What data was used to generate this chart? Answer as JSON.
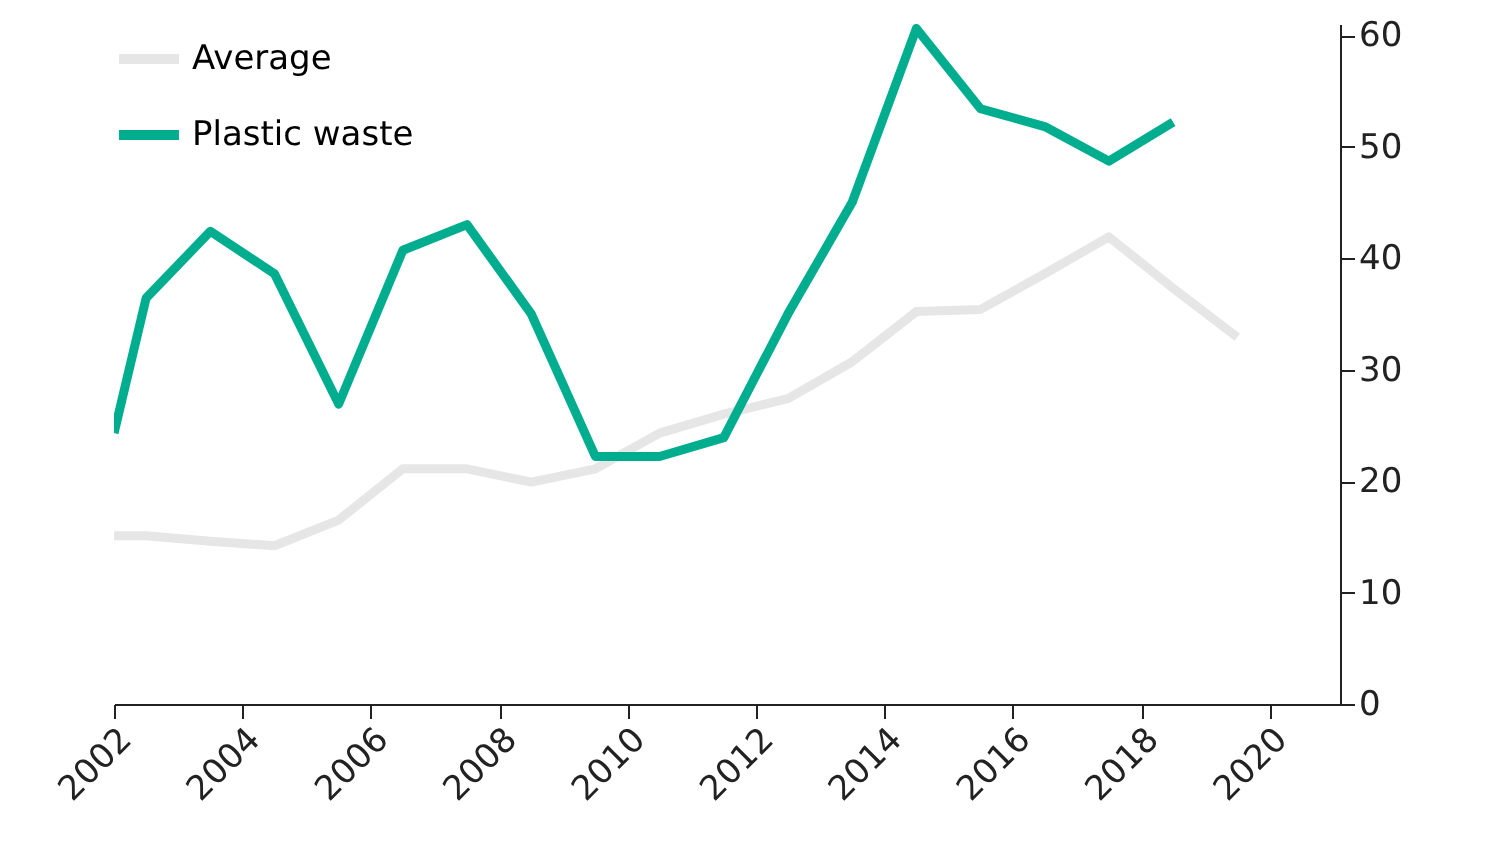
{
  "chart_data": {
    "type": "line",
    "series": [
      {
        "name": "Average",
        "color": "#e6e6e6",
        "x": [
          2002,
          2002.5,
          2003.5,
          2004.5,
          2005.5,
          2006.5,
          2007.5,
          2008.5,
          2009.5,
          2010.5,
          2011.5,
          2012.5,
          2013.5,
          2014.5,
          2015.5,
          2016.5,
          2017.5,
          2018.5,
          2019.5
        ],
        "values": [
          15.1,
          15.1,
          14.6,
          14.2,
          16.5,
          21.1,
          21.1,
          19.9,
          21.1,
          24.3,
          26,
          27.4,
          30.7,
          35.2,
          35.4,
          38.6,
          41.9,
          37.3,
          32.9
        ]
      },
      {
        "name": "Plastic waste",
        "color": "#00ad8e",
        "x": [
          2002,
          2002.5,
          2003.5,
          2004.5,
          2005.5,
          2006.5,
          2007.5,
          2008.5,
          2009.5,
          2010.5,
          2011.5,
          2012.5,
          2013.5,
          2014.5,
          2015.5,
          2016.5,
          2017.5,
          2018.5
        ],
        "values": [
          24.3,
          36.4,
          42.4,
          38.6,
          26.9,
          40.7,
          43,
          35,
          22.2,
          22.2,
          23.9,
          35,
          45,
          60.6,
          53.4,
          51.8,
          48.7,
          52.2
        ]
      }
    ],
    "xlim": [
      2002,
      2021.1
    ],
    "xticks": [
      2002,
      2004,
      2006,
      2008,
      2010,
      2012,
      2014,
      2016,
      2018,
      2020
    ],
    "ylim": [
      0,
      61
    ],
    "yticks": [
      0,
      10,
      20,
      30,
      40,
      50,
      60
    ],
    "grid": false,
    "legend": "top left",
    "marker": "none",
    "line_style": "solid"
  }
}
